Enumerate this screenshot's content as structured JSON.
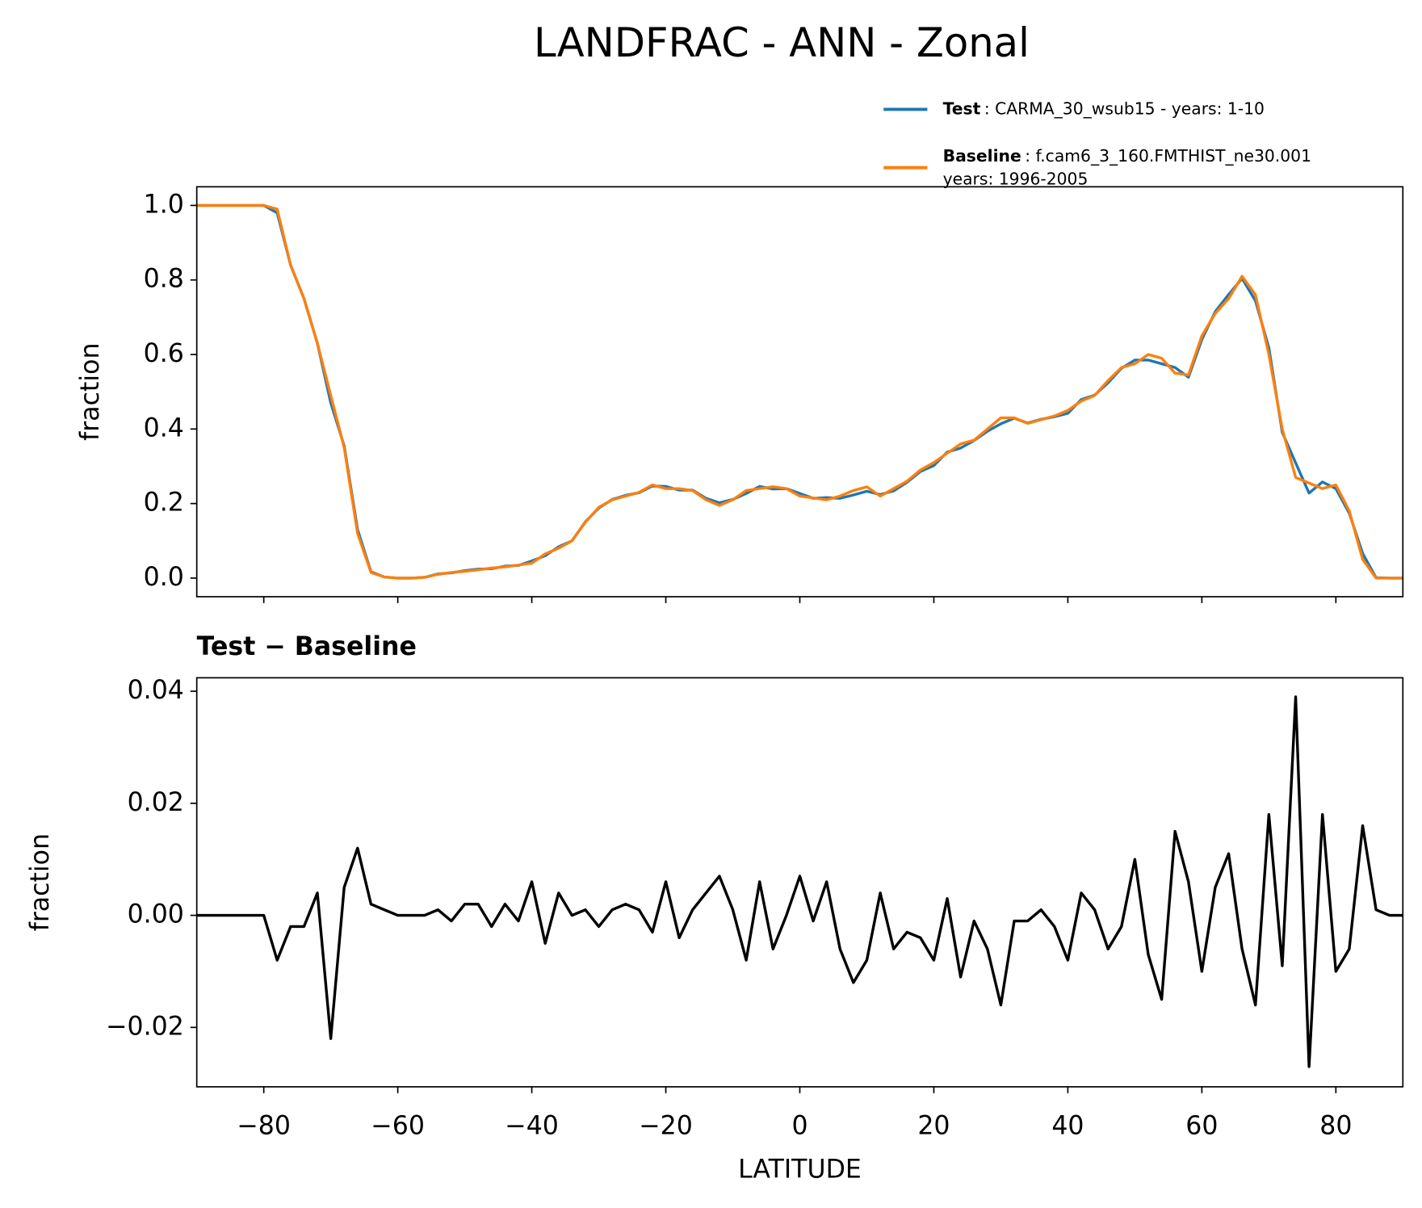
{
  "title": "LANDFRAC - ANN - Zonal",
  "xlabel": "LATITUDE",
  "chart_data": [
    {
      "type": "line",
      "ylabel": "fraction",
      "x": [
        -90,
        -88,
        -86,
        -84,
        -82,
        -80,
        -78,
        -76,
        -74,
        -72,
        -70,
        -68,
        -66,
        -64,
        -62,
        -60,
        -58,
        -56,
        -54,
        -52,
        -50,
        -48,
        -46,
        -44,
        -42,
        -40,
        -38,
        -36,
        -34,
        -32,
        -30,
        -28,
        -26,
        -24,
        -22,
        -20,
        -18,
        -16,
        -14,
        -12,
        -10,
        -8,
        -6,
        -4,
        -2,
        0,
        2,
        4,
        6,
        8,
        10,
        12,
        14,
        16,
        18,
        20,
        22,
        24,
        26,
        28,
        30,
        32,
        34,
        36,
        38,
        40,
        42,
        44,
        46,
        48,
        50,
        52,
        54,
        56,
        58,
        60,
        62,
        64,
        66,
        68,
        70,
        72,
        74,
        76,
        78,
        80,
        82,
        84,
        86,
        88,
        90
      ],
      "series": [
        {
          "name": "Test",
          "label": ": CARMA_30_wsub15 - years: 1-10",
          "color": "#1f77b4",
          "values": [
            1,
            1,
            1,
            1,
            1,
            1,
            0.98,
            0.84,
            0.75,
            0.63,
            0.47,
            0.355,
            0.13,
            0.017,
            0.003,
            0,
            0,
            0.002,
            0.011,
            0.014,
            0.02,
            0.024,
            0.025,
            0.032,
            0.034,
            0.046,
            0.06,
            0.084,
            0.1,
            0.151,
            0.188,
            0.211,
            0.222,
            0.229,
            0.247,
            0.246,
            0.236,
            0.236,
            0.214,
            0.202,
            0.211,
            0.227,
            0.246,
            0.239,
            0.24,
            0.227,
            0.214,
            0.216,
            0.214,
            0.223,
            0.233,
            0.224,
            0.234,
            0.257,
            0.286,
            0.302,
            0.338,
            0.349,
            0.369,
            0.394,
            0.414,
            0.429,
            0.416,
            0.426,
            0.433,
            0.442,
            0.479,
            0.491,
            0.524,
            0.563,
            0.585,
            0.585,
            0.575,
            0.565,
            0.539,
            0.64,
            0.715,
            0.761,
            0.804,
            0.744,
            0.618,
            0.391,
            0.309,
            0.228,
            0.258,
            0.24,
            0.174,
            0.066,
            0.001,
            0,
            0
          ]
        },
        {
          "name": "Baseline",
          "label": [
            ": f.cam6_3_160.FMTHIST_ne30.001",
            "years: 1996-2005"
          ],
          "color": "#ff7f0e",
          "values": [
            1,
            1,
            1,
            1,
            1,
            1,
            0.99,
            0.84,
            0.75,
            0.63,
            0.49,
            0.35,
            0.12,
            0.015,
            0.003,
            0,
            0,
            0.002,
            0.01,
            0.015,
            0.018,
            0.022,
            0.027,
            0.03,
            0.035,
            0.04,
            0.065,
            0.08,
            0.1,
            0.15,
            0.19,
            0.21,
            0.22,
            0.23,
            0.25,
            0.24,
            0.24,
            0.235,
            0.21,
            0.195,
            0.21,
            0.235,
            0.24,
            0.245,
            0.24,
            0.22,
            0.215,
            0.21,
            0.22,
            0.235,
            0.245,
            0.22,
            0.24,
            0.26,
            0.29,
            0.31,
            0.335,
            0.36,
            0.37,
            0.4,
            0.43,
            0.43,
            0.415,
            0.425,
            0.435,
            0.45,
            0.475,
            0.49,
            0.53,
            0.565,
            0.575,
            0.6,
            0.59,
            0.55,
            0.545,
            0.65,
            0.71,
            0.75,
            0.81,
            0.76,
            0.6,
            0.4,
            0.27,
            0.255,
            0.24,
            0.25,
            0.18,
            0.05,
            0,
            0,
            0
          ]
        }
      ],
      "xlim": [
        -90,
        90
      ],
      "xticks": [
        -80,
        -60,
        -40,
        -20,
        0,
        20,
        40,
        60,
        80
      ],
      "ylim": [
        -0.05,
        1.05
      ],
      "yticks": [
        {
          "value": 0,
          "label": "0.0"
        },
        0.2,
        0.4,
        0.6,
        0.8,
        {
          "value": 1,
          "label": "1.0"
        }
      ],
      "legend": "upper right"
    },
    {
      "type": "line",
      "title": "Test − Baseline",
      "ylabel": "fraction",
      "x": [
        -90,
        -88,
        -86,
        -84,
        -82,
        -80,
        -78,
        -76,
        -74,
        -72,
        -70,
        -68,
        -66,
        -64,
        -62,
        -60,
        -58,
        -56,
        -54,
        -52,
        -50,
        -48,
        -46,
        -44,
        -42,
        -40,
        -38,
        -36,
        -34,
        -32,
        -30,
        -28,
        -26,
        -24,
        -22,
        -20,
        -18,
        -16,
        -14,
        -12,
        -10,
        -8,
        -6,
        -4,
        -2,
        0,
        2,
        4,
        6,
        8,
        10,
        12,
        14,
        16,
        18,
        20,
        22,
        24,
        26,
        28,
        30,
        32,
        34,
        36,
        38,
        40,
        42,
        44,
        46,
        48,
        50,
        52,
        54,
        56,
        58,
        60,
        62,
        64,
        66,
        68,
        70,
        72,
        74,
        76,
        78,
        80,
        82,
        84,
        86,
        88,
        90
      ],
      "series": [
        {
          "color": "#000000",
          "values": [
            0,
            0,
            0,
            0,
            0,
            0,
            -0.008,
            -0.002,
            -0.002,
            0.004,
            -0.022,
            0.005,
            0.012,
            0.002,
            0.001,
            0,
            0,
            0,
            0.001,
            -0.001,
            0.002,
            0.002,
            -0.002,
            0.002,
            -0.001,
            0.006,
            -0.005,
            0.004,
            0,
            0.001,
            -0.002,
            0.001,
            0.002,
            0.001,
            -0.003,
            0.006,
            -0.004,
            0.001,
            0.004,
            0.007,
            0.001,
            -0.008,
            0.006,
            -0.006,
            0,
            0.007,
            -0.001,
            0.006,
            -0.006,
            -0.012,
            -0.008,
            0.004,
            -0.006,
            -0.003,
            -0.004,
            -0.008,
            0.003,
            -0.011,
            -0.001,
            -0.006,
            -0.016,
            -0.001,
            -0.001,
            0.001,
            -0.002,
            -0.008,
            0.004,
            0.001,
            -0.006,
            -0.002,
            0.01,
            -0.007,
            -0.015,
            0.015,
            0.006,
            -0.01,
            0.005,
            0.011,
            -0.006,
            -0.016,
            0.018,
            -0.009,
            0.039,
            -0.027,
            0.018,
            -0.01,
            -0.006,
            0.016,
            0.001,
            0,
            0
          ]
        }
      ],
      "xlim": [
        -90,
        90
      ],
      "xticks": [
        {
          "value": -80,
          "label": "−80"
        },
        {
          "value": -60,
          "label": "−60"
        },
        {
          "value": -40,
          "label": "−40"
        },
        {
          "value": -20,
          "label": "−20"
        },
        0,
        20,
        40,
        60,
        80
      ],
      "ylim": [
        -0.0306,
        0.0424
      ],
      "yticks": [
        {
          "value": -0.02,
          "label": "−0.02"
        },
        {
          "value": 0,
          "label": "0.00"
        },
        0.02,
        0.04
      ]
    }
  ]
}
